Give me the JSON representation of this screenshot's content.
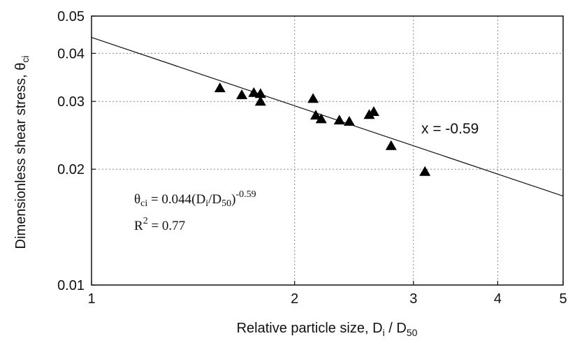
{
  "chart_data": {
    "type": "scatter",
    "xscale": "log",
    "yscale": "log",
    "xlim": [
      1,
      5
    ],
    "ylim": [
      0.01,
      0.05
    ],
    "grid": true,
    "x_ticks": [
      "1",
      "2",
      "3",
      "4",
      "5"
    ],
    "y_ticks": [
      "0.01",
      "0.02",
      "0.03",
      "0.04",
      "0.05"
    ],
    "xlabel_text": "Relative particle size, D",
    "xlabel_sub": "i",
    "xlabel_mid": " / D",
    "xlabel_sub2": "50",
    "ylabel_text": "Dimensionless shear stress, θ",
    "ylabel_sub": "ci",
    "points": [
      {
        "x": 1.55,
        "y": 0.0325
      },
      {
        "x": 1.67,
        "y": 0.0312
      },
      {
        "x": 1.74,
        "y": 0.0316
      },
      {
        "x": 1.78,
        "y": 0.0314
      },
      {
        "x": 1.78,
        "y": 0.03
      },
      {
        "x": 2.13,
        "y": 0.0305
      },
      {
        "x": 2.15,
        "y": 0.0276
      },
      {
        "x": 2.19,
        "y": 0.027
      },
      {
        "x": 2.33,
        "y": 0.0268
      },
      {
        "x": 2.41,
        "y": 0.0266
      },
      {
        "x": 2.58,
        "y": 0.0277
      },
      {
        "x": 2.62,
        "y": 0.0282
      },
      {
        "x": 2.78,
        "y": 0.023
      },
      {
        "x": 3.12,
        "y": 0.0197
      }
    ],
    "fit": {
      "coef": 0.044,
      "exponent": -0.59
    },
    "annotation_slope": "x = -0.59",
    "equation": {
      "theta": "θ",
      "theta_sub": "ci",
      "mid": " = 0.044(D",
      "d_sub": "i",
      "slash": "/D",
      "d50_sub": "50",
      "close": ")",
      "exp": "-0.59"
    },
    "r2": {
      "r": "R",
      "sup": "2",
      "rest": " = 0.77"
    }
  }
}
